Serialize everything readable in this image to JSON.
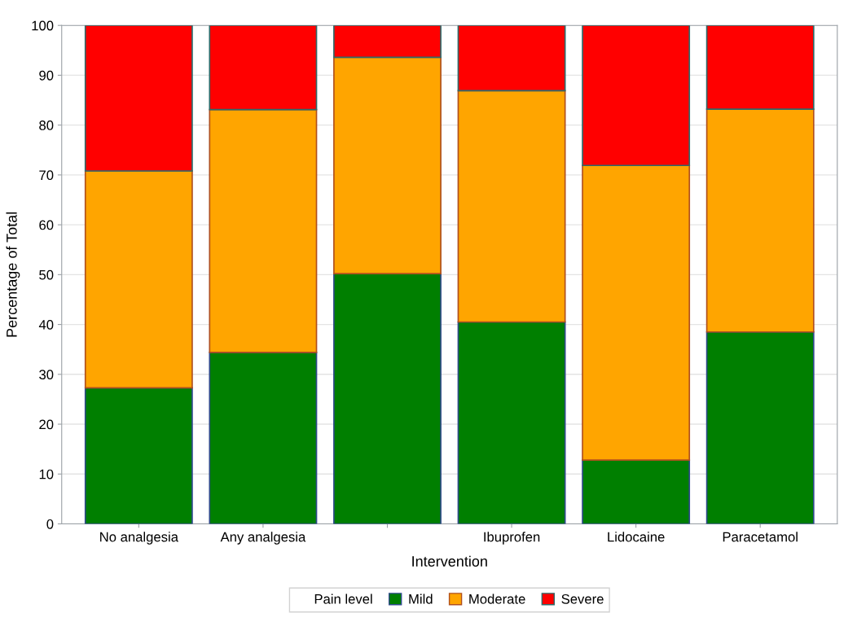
{
  "chart_data": {
    "type": "bar",
    "stacked": true,
    "xlabel": "Intervention",
    "ylabel": "Percentage of Total",
    "legend_title": "Pain level",
    "categories": [
      "No analgesia",
      "Any analgesia",
      null,
      "Ibuprofen",
      "Lidocaine",
      "Paracetamol"
    ],
    "series": [
      {
        "name": "Mild",
        "color": "#007f00",
        "values": [
          27.3,
          34.4,
          50.2,
          40.5,
          12.8,
          38.5
        ]
      },
      {
        "name": "Moderate",
        "color": "#ffa500",
        "values": [
          43.5,
          48.7,
          43.4,
          46.4,
          59.1,
          44.7
        ]
      },
      {
        "name": "Severe",
        "color": "#ff0000",
        "values": [
          29.2,
          16.9,
          6.4,
          13.1,
          28.1,
          16.8
        ]
      }
    ],
    "ylim": [
      0,
      100
    ],
    "yticks": [
      0,
      10,
      20,
      30,
      40,
      50,
      60,
      70,
      80,
      90,
      100
    ],
    "grid": "y",
    "legend": "bottom"
  }
}
